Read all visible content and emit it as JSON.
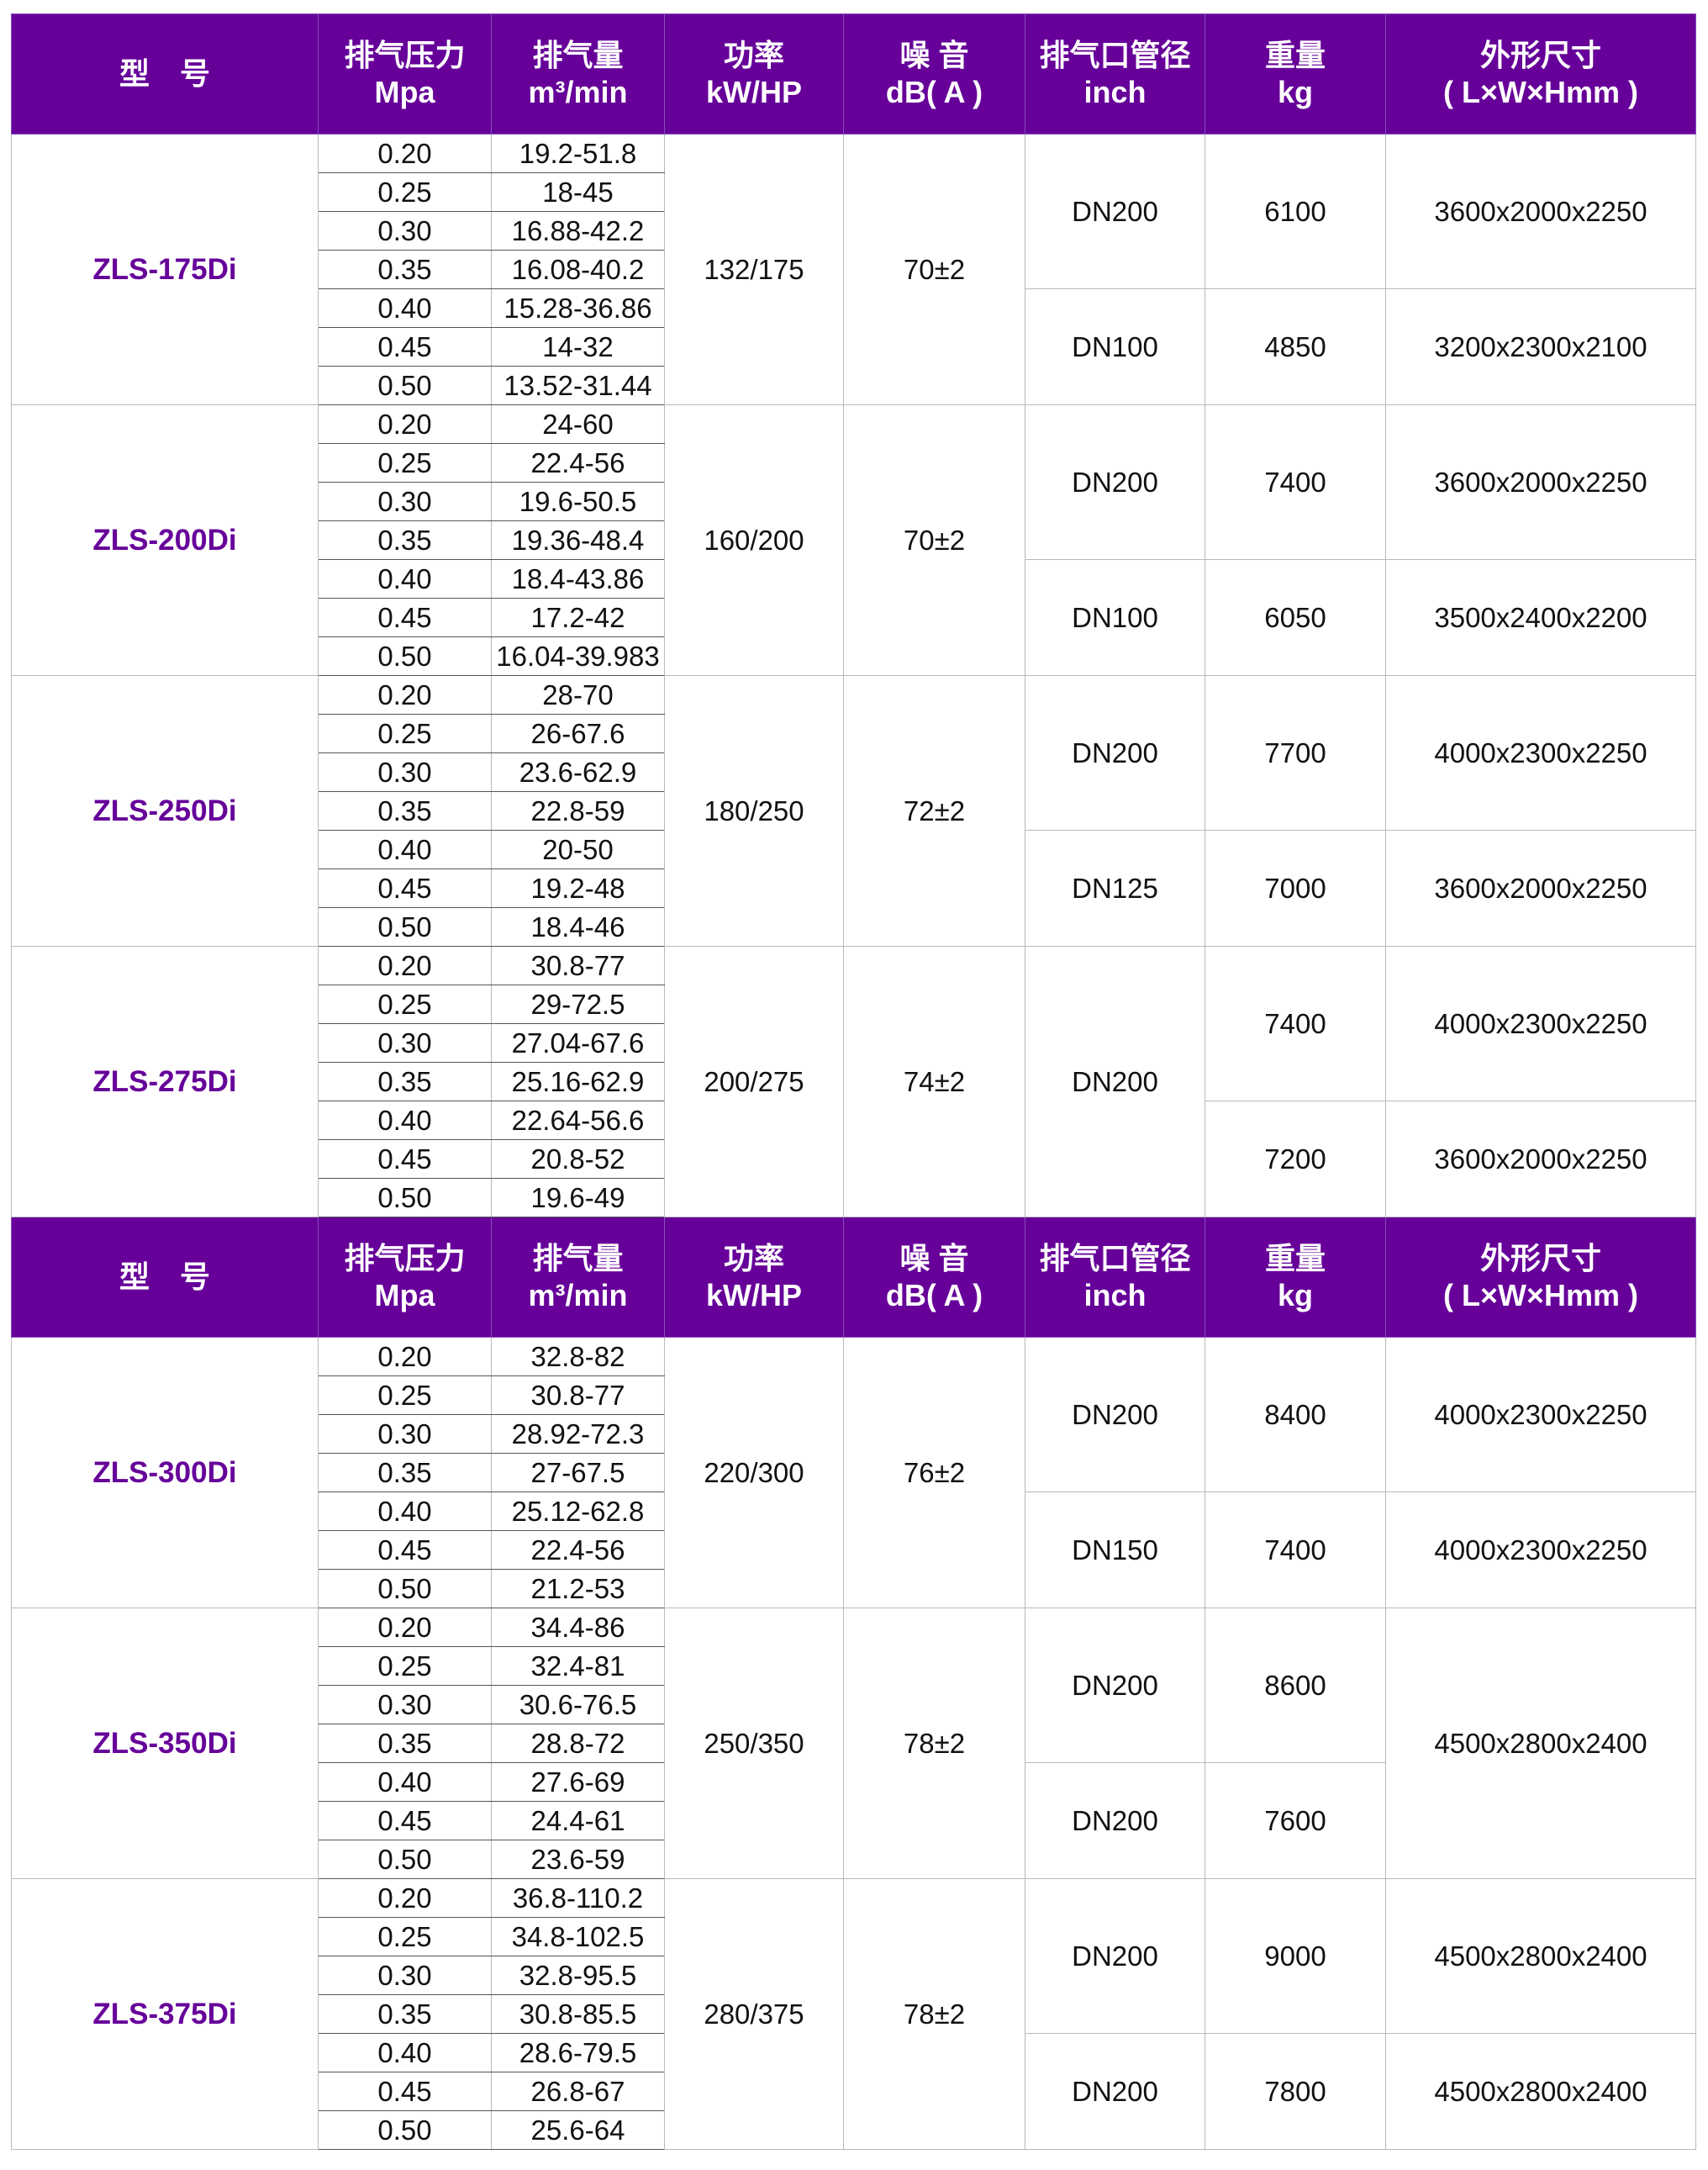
{
  "header": {
    "model": "型　号",
    "pressure": [
      "排气压力",
      "Mpa"
    ],
    "flow": [
      "排气量",
      "m³/min"
    ],
    "power": [
      "功率",
      "kW/HP"
    ],
    "noise": [
      "噪 音",
      "dB( A )"
    ],
    "outlet": [
      "排气口管径",
      "inch"
    ],
    "weight": [
      "重量",
      "kg"
    ],
    "dims": [
      "外形尺寸",
      "( L×W×Hmm )"
    ]
  },
  "colors": {
    "header_bg": "#660099",
    "model_text": "#660099"
  },
  "pressures": [
    "0.20",
    "0.25",
    "0.30",
    "0.35",
    "0.40",
    "0.45",
    "0.50"
  ],
  "models": [
    {
      "name": "ZLS-175Di",
      "power": "132/175",
      "noise": "70±2",
      "flows": [
        "19.2-51.8",
        "18-45",
        "16.88-42.2",
        "16.08-40.2",
        "15.28-36.86",
        "14-32",
        "13.52-31.44"
      ],
      "outlet": [
        {
          "value": "DN200",
          "rows": 4
        },
        {
          "value": "DN100",
          "rows": 3
        }
      ],
      "weight": [
        {
          "value": "6100",
          "rows": 4
        },
        {
          "value": "4850",
          "rows": 3
        }
      ],
      "dims": [
        {
          "value": "3600x2000x2250",
          "rows": 4
        },
        {
          "value": "3200x2300x2100",
          "rows": 3
        }
      ]
    },
    {
      "name": "ZLS-200Di",
      "power": "160/200",
      "noise": "70±2",
      "flows": [
        "24-60",
        "22.4-56",
        "19.6-50.5",
        "19.36-48.4",
        "18.4-43.86",
        "17.2-42",
        "16.04-39.983"
      ],
      "outlet": [
        {
          "value": "DN200",
          "rows": 4
        },
        {
          "value": "DN100",
          "rows": 3
        }
      ],
      "weight": [
        {
          "value": "7400",
          "rows": 4
        },
        {
          "value": "6050",
          "rows": 3
        }
      ],
      "dims": [
        {
          "value": "3600x2000x2250",
          "rows": 4
        },
        {
          "value": "3500x2400x2200",
          "rows": 3
        }
      ]
    },
    {
      "name": "ZLS-250Di",
      "power": "180/250",
      "noise": "72±2",
      "flows": [
        "28-70",
        "26-67.6",
        "23.6-62.9",
        "22.8-59",
        "20-50",
        "19.2-48",
        "18.4-46"
      ],
      "outlet": [
        {
          "value": "DN200",
          "rows": 4
        },
        {
          "value": "DN125",
          "rows": 3
        }
      ],
      "weight": [
        {
          "value": "7700",
          "rows": 4
        },
        {
          "value": "7000",
          "rows": 3
        }
      ],
      "dims": [
        {
          "value": "4000x2300x2250",
          "rows": 4
        },
        {
          "value": "3600x2000x2250",
          "rows": 3
        }
      ]
    },
    {
      "name": "ZLS-275Di",
      "power": "200/275",
      "noise": "74±2",
      "flows": [
        "30.8-77",
        "29-72.5",
        "27.04-67.6",
        "25.16-62.9",
        "22.64-56.6",
        "20.8-52",
        "19.6-49"
      ],
      "outlet": [
        {
          "value": "DN200",
          "rows": 7
        }
      ],
      "weight": [
        {
          "value": "7400",
          "rows": 4
        },
        {
          "value": "7200",
          "rows": 3
        }
      ],
      "dims": [
        {
          "value": "4000x2300x2250",
          "rows": 4
        },
        {
          "value": "3600x2000x2250",
          "rows": 3
        }
      ]
    },
    {
      "name": "ZLS-300Di",
      "power": "220/300",
      "noise": "76±2",
      "header_before": true,
      "flows": [
        "32.8-82",
        "30.8-77",
        "28.92-72.3",
        "27-67.5",
        "25.12-62.8",
        "22.4-56",
        "21.2-53"
      ],
      "outlet": [
        {
          "value": "DN200",
          "rows": 4
        },
        {
          "value": "DN150",
          "rows": 3
        }
      ],
      "weight": [
        {
          "value": "8400",
          "rows": 4
        },
        {
          "value": "7400",
          "rows": 3
        }
      ],
      "dims": [
        {
          "value": "4000x2300x2250",
          "rows": 4
        },
        {
          "value": "4000x2300x2250",
          "rows": 3
        }
      ]
    },
    {
      "name": "ZLS-350Di",
      "power": "250/350",
      "noise": "78±2",
      "flows": [
        "34.4-86",
        "32.4-81",
        "30.6-76.5",
        "28.8-72",
        "27.6-69",
        "24.4-61",
        "23.6-59"
      ],
      "outlet": [
        {
          "value": "DN200",
          "rows": 4
        },
        {
          "value": "DN200",
          "rows": 3
        }
      ],
      "weight": [
        {
          "value": "8600",
          "rows": 4
        },
        {
          "value": "7600",
          "rows": 3
        }
      ],
      "dims": [
        {
          "value": "4500x2800x2400",
          "rows": 7
        }
      ]
    },
    {
      "name": "ZLS-375Di",
      "power": "280/375",
      "noise": "78±2",
      "flows": [
        "36.8-110.2",
        "34.8-102.5",
        "32.8-95.5",
        "30.8-85.5",
        "28.6-79.5",
        "26.8-67",
        "25.6-64"
      ],
      "outlet": [
        {
          "value": "DN200",
          "rows": 4
        },
        {
          "value": "DN200",
          "rows": 3
        }
      ],
      "weight": [
        {
          "value": "9000",
          "rows": 4
        },
        {
          "value": "7800",
          "rows": 3
        }
      ],
      "dims": [
        {
          "value": "4500x2800x2400",
          "rows": 4
        },
        {
          "value": "4500x2800x2400",
          "rows": 3
        }
      ]
    }
  ]
}
